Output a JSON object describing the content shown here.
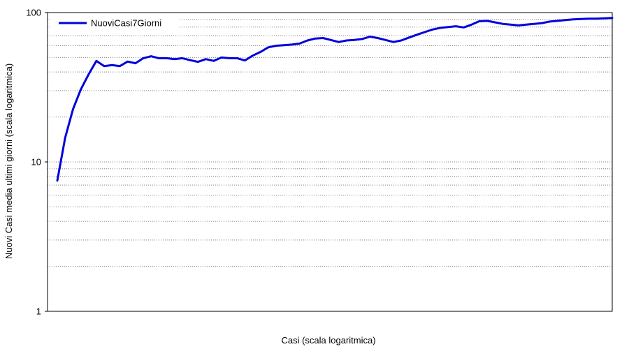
{
  "chart_data": {
    "type": "line",
    "title": "",
    "xlabel": "Casi (scala logaritmica)",
    "ylabel": "Nuovi Casi media ultimi giorni (scala logaritmica)",
    "x_scale": "log",
    "y_scale": "log",
    "ylim": [
      1,
      100
    ],
    "y_ticks": [
      {
        "value": 1,
        "label": "1"
      },
      {
        "value": 10,
        "label": "10"
      },
      {
        "value": 100,
        "label": "100"
      }
    ],
    "grid": "horizontal-dotted",
    "legend_position": "top-left",
    "series": [
      {
        "name": "NuoviCasi7Giorni",
        "color": "#0000dd",
        "x": [
          1,
          2,
          3,
          4,
          5,
          6,
          7,
          8,
          9,
          10,
          11,
          12,
          13,
          14,
          15,
          16,
          17,
          18,
          19,
          20,
          21,
          22,
          23,
          24,
          25,
          26,
          27,
          28,
          29,
          30,
          31,
          32,
          33,
          34,
          35,
          36,
          37,
          38,
          39,
          40,
          41,
          42,
          43,
          44,
          45,
          46,
          47,
          48,
          49,
          50,
          51,
          52,
          53,
          54,
          55,
          56,
          57,
          58,
          59,
          60,
          61,
          62,
          63,
          64,
          65,
          66,
          67,
          68,
          69,
          70,
          71,
          72
        ],
        "values": [
          7.5,
          14.5,
          22.5,
          30.5,
          38.5,
          47.5,
          43.8,
          44.5,
          43.8,
          47.0,
          45.8,
          49.5,
          51.0,
          49.5,
          49.5,
          48.8,
          49.5,
          48.0,
          46.8,
          48.8,
          47.5,
          50.0,
          49.5,
          49.5,
          47.8,
          51.5,
          54.5,
          58.5,
          60.0,
          60.5,
          61.0,
          62.0,
          65.0,
          67.0,
          67.5,
          65.5,
          63.5,
          65.0,
          65.5,
          66.5,
          69.0,
          67.5,
          65.5,
          63.5,
          65.0,
          68.0,
          71.0,
          74.0,
          77.0,
          79.0,
          80.0,
          81.0,
          79.5,
          83.0,
          87.5,
          88.0,
          86.0,
          84.0,
          83.0,
          82.0,
          83.0,
          84.0,
          85.0,
          87.0,
          88.0,
          89.0,
          90.0,
          90.5,
          91.0,
          91.0,
          91.5,
          92.0
        ]
      }
    ]
  }
}
